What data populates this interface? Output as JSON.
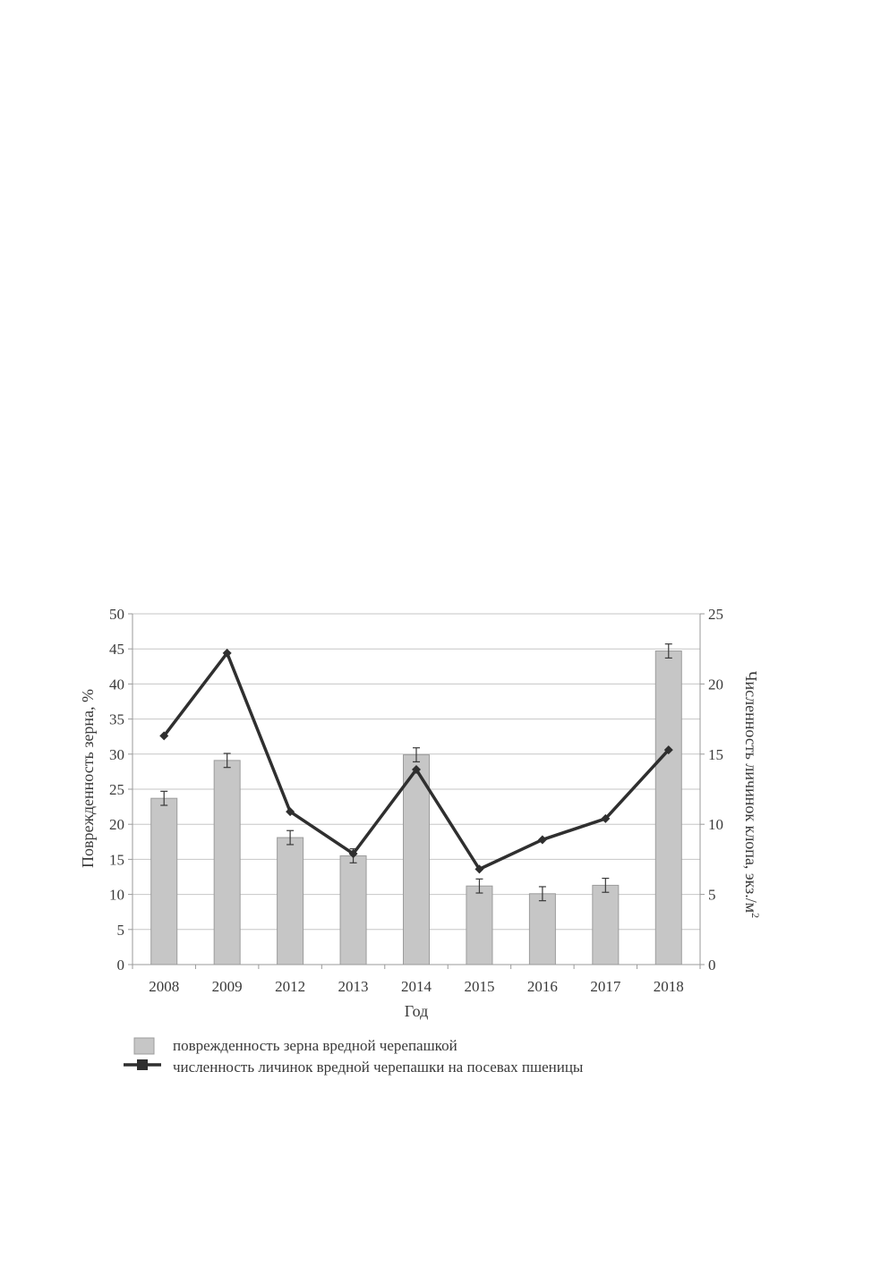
{
  "chart_data": {
    "type": "bar",
    "categories": [
      "2008",
      "2009",
      "2012",
      "2013",
      "2014",
      "2015",
      "2016",
      "2017",
      "2018"
    ],
    "xlabel": "Год",
    "ylabel": "Поврежденность зерна, %",
    "ylabel_right": "Численность личинок клопа, экз./м",
    "ylabel_right_sup": "2",
    "ylim": [
      0,
      50
    ],
    "ylim_right": [
      0,
      25
    ],
    "yticks": [
      0,
      5,
      10,
      15,
      20,
      25,
      30,
      35,
      40,
      45,
      50
    ],
    "yticks_right": [
      0,
      5,
      10,
      15,
      20,
      25
    ],
    "grid": true,
    "legend_position": "bottom",
    "series": [
      {
        "name": "поврежденность зерна вредной черепашкой",
        "type": "bar",
        "axis": "left",
        "values": [
          23.7,
          29.1,
          18.1,
          15.5,
          29.9,
          11.2,
          10.1,
          11.3,
          44.7
        ],
        "error": [
          1.0,
          1.0,
          1.0,
          1.0,
          1.0,
          1.0,
          1.0,
          1.0,
          1.0
        ],
        "color": "#c6c6c6"
      },
      {
        "name": "численность личинок вредной черепашки на посевах пшеницы",
        "type": "line",
        "axis": "right",
        "values": [
          16.3,
          22.2,
          10.9,
          7.9,
          13.9,
          6.8,
          8.9,
          10.4,
          15.3
        ],
        "color": "#2f2f2f"
      }
    ]
  }
}
